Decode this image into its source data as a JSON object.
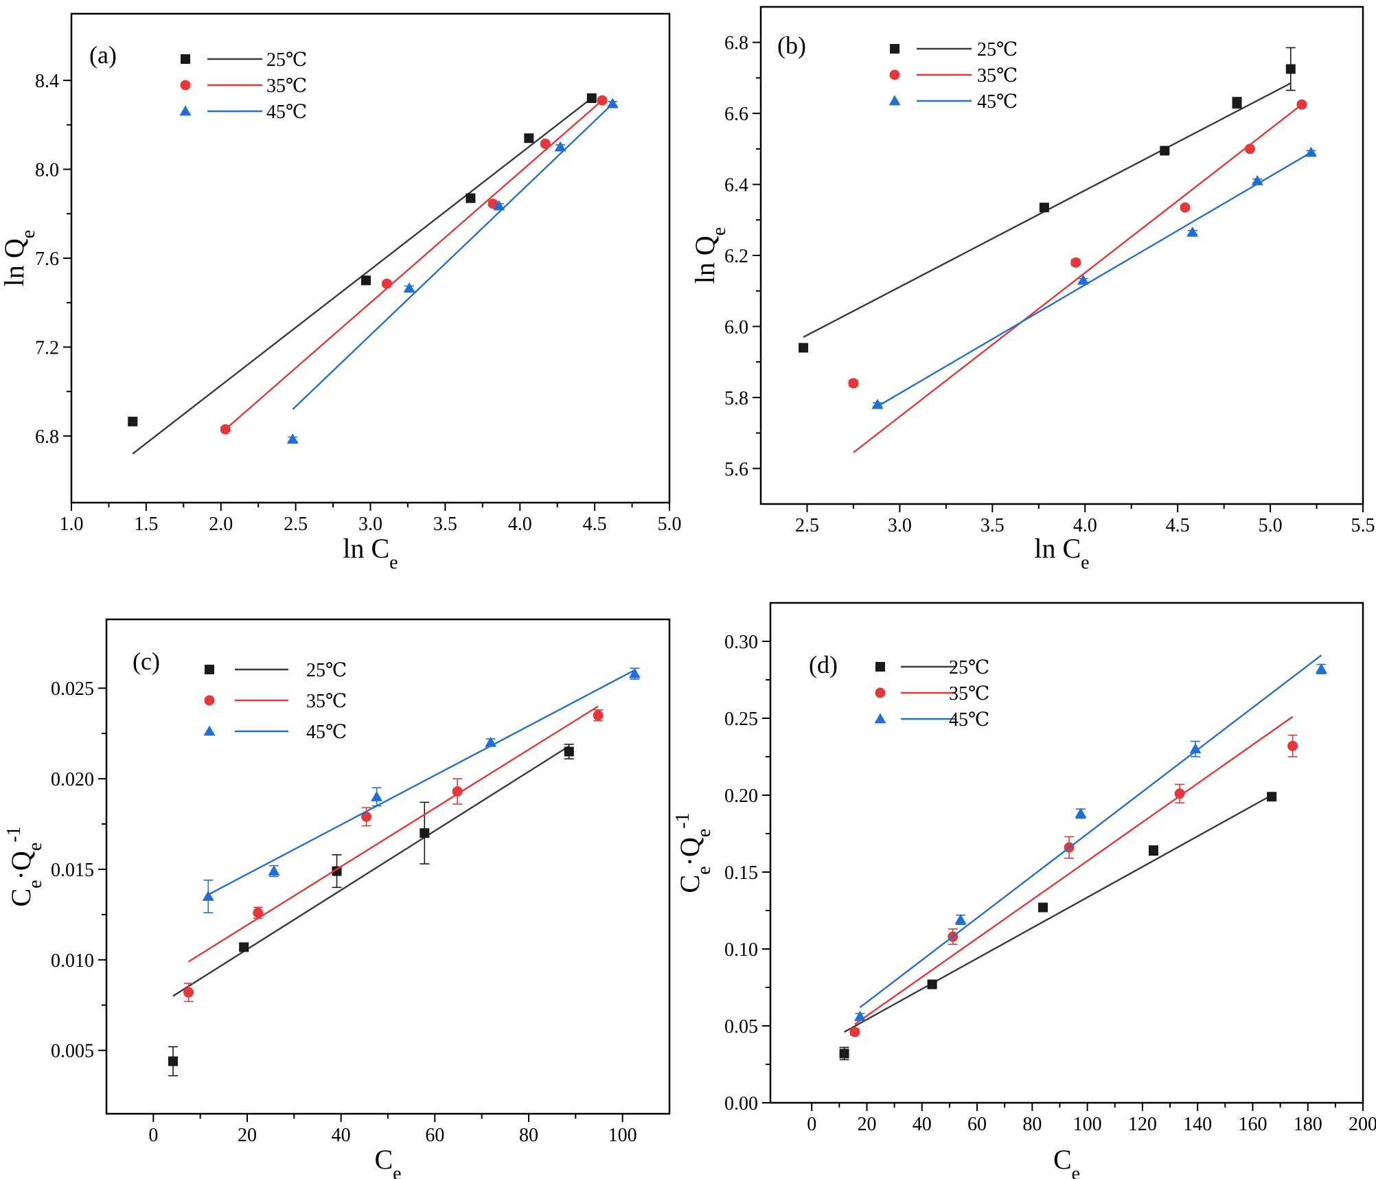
{
  "colors": {
    "25": "#1a1a1a",
    "35": "#e8373a",
    "45": "#1f6fd6",
    "line25": "#3a3a3a",
    "line35": "#e8373a",
    "line45": "#2470d0"
  },
  "chart_data": [
    {
      "type": "scatter",
      "panel_label": "(a)",
      "xlabel": "ln C",
      "xlabel_sub": "e",
      "ylabel": "ln Q",
      "ylabel_sub": "e",
      "ylabel_sup": "",
      "xlim": [
        1.0,
        5.0
      ],
      "ylim": [
        6.5,
        8.7
      ],
      "xticks": [
        1.0,
        1.5,
        2.0,
        2.5,
        3.0,
        3.5,
        4.0,
        4.5,
        5.0
      ],
      "xtick_labels": [
        "1.0",
        "1.5",
        "2.0",
        "2.5",
        "3.0",
        "3.5",
        "4.0",
        "4.5",
        "5.0"
      ],
      "yticks": [
        6.8,
        7.2,
        7.6,
        8.0,
        8.4
      ],
      "ytick_labels": [
        "6.8",
        "7.2",
        "7.6",
        "8.0",
        "8.4"
      ],
      "legend_position": "top-left",
      "series": [
        {
          "name": "25℃",
          "marker": "square",
          "color_key": "25",
          "x": [
            1.41,
            2.97,
            3.67,
            4.06,
            4.48
          ],
          "y": [
            6.865,
            7.5,
            7.87,
            8.14,
            8.32
          ],
          "err": [
            0.01,
            0.01,
            0.01,
            0.01,
            0.01
          ],
          "fit": {
            "x": [
              1.41,
              4.48
            ],
            "y": [
              6.72,
              8.32
            ]
          }
        },
        {
          "name": "35℃",
          "marker": "circle",
          "color_key": "35",
          "x": [
            2.03,
            3.11,
            3.82,
            4.17,
            4.55
          ],
          "y": [
            6.83,
            7.485,
            7.845,
            8.115,
            8.31
          ],
          "err": [
            0.01,
            0.01,
            0.01,
            0.01,
            0.01
          ],
          "fit": {
            "x": [
              2.03,
              4.55
            ],
            "y": [
              6.83,
              8.31
            ]
          }
        },
        {
          "name": "45℃",
          "marker": "triangle",
          "color_key": "45",
          "x": [
            2.48,
            3.26,
            3.86,
            4.27,
            4.62
          ],
          "y": [
            6.785,
            7.465,
            7.835,
            8.1,
            8.295
          ],
          "err": [
            0.01,
            0.01,
            0.01,
            0.01,
            0.01
          ],
          "fit": {
            "x": [
              2.48,
              4.62
            ],
            "y": [
              6.92,
              8.295
            ]
          }
        }
      ]
    },
    {
      "type": "scatter",
      "panel_label": "(b)",
      "xlabel": "ln C",
      "xlabel_sub": "e",
      "ylabel": "ln Q",
      "ylabel_sub": "e",
      "ylabel_sup": "",
      "xlim": [
        2.25,
        5.5
      ],
      "ylim": [
        5.5,
        6.9
      ],
      "xticks": [
        2.5,
        3.0,
        3.5,
        4.0,
        4.5,
        5.0,
        5.5
      ],
      "xtick_labels": [
        "2.5",
        "3.0",
        "3.5",
        "4.0",
        "4.5",
        "5.0",
        "5.5"
      ],
      "yticks": [
        5.6,
        5.8,
        6.0,
        6.2,
        6.4,
        6.6,
        6.8
      ],
      "ytick_labels": [
        "5.6",
        "5.8",
        "6.0",
        "6.2",
        "6.4",
        "6.6",
        "6.8"
      ],
      "legend_position": "top-left",
      "series": [
        {
          "name": "25℃",
          "marker": "square",
          "color_key": "25",
          "x": [
            2.48,
            3.78,
            4.43,
            4.82,
            5.11
          ],
          "y": [
            5.94,
            6.335,
            6.495,
            6.63,
            6.725
          ],
          "err": [
            0.005,
            0.005,
            0.005,
            0.015,
            0.06
          ],
          "fit": {
            "x": [
              2.48,
              5.11
            ],
            "y": [
              5.97,
              6.685
            ]
          }
        },
        {
          "name": "35℃",
          "marker": "circle",
          "color_key": "35",
          "x": [
            2.75,
            3.95,
            4.54,
            4.89,
            5.17
          ],
          "y": [
            5.84,
            6.18,
            6.335,
            6.5,
            6.625
          ],
          "err": [
            0.008,
            0.008,
            0.005,
            0.005,
            0.005
          ],
          "fit": {
            "x": [
              2.75,
              5.17
            ],
            "y": [
              5.645,
              6.625
            ]
          }
        },
        {
          "name": "45℃",
          "marker": "triangle",
          "color_key": "45",
          "x": [
            2.88,
            3.99,
            4.58,
            4.93,
            5.22
          ],
          "y": [
            5.78,
            6.13,
            6.265,
            6.41,
            6.49
          ],
          "err": [
            0.005,
            0.005,
            0.005,
            0.005,
            0.005
          ],
          "fit": {
            "x": [
              2.88,
              5.22
            ],
            "y": [
              5.775,
              6.49
            ]
          }
        }
      ]
    },
    {
      "type": "scatter",
      "panel_label": "(c)",
      "xlabel": "C",
      "xlabel_sub": "e",
      "ylabel": "C",
      "ylabel_sub": "e",
      "ylabel_mid": "·Q",
      "ylabel_sub2": "e",
      "ylabel_sup": "-1",
      "xlim": [
        -10,
        110
      ],
      "ylim": [
        0.0015,
        0.0288
      ],
      "xticks": [
        0,
        20,
        40,
        60,
        80,
        100
      ],
      "xtick_labels": [
        "0",
        "20",
        "40",
        "60",
        "80",
        "100"
      ],
      "yticks": [
        0.005,
        0.01,
        0.015,
        0.02,
        0.025
      ],
      "ytick_labels": [
        "0.005",
        "0.010",
        "0.015",
        "0.020",
        "0.025"
      ],
      "legend_position": "top-left",
      "series": [
        {
          "name": "25℃",
          "marker": "square",
          "color_key": "25",
          "x": [
            4.2,
            19.3,
            39.1,
            57.8,
            88.6
          ],
          "y": [
            0.0044,
            0.0107,
            0.0149,
            0.017,
            0.0215
          ],
          "err": [
            0.0008,
            0.0002,
            0.0009,
            0.0017,
            0.0004
          ],
          "fit": {
            "x": [
              4.2,
              88.6
            ],
            "y": [
              0.008,
              0.0218
            ]
          }
        },
        {
          "name": "35℃",
          "marker": "circle",
          "color_key": "35",
          "x": [
            7.5,
            22.3,
            45.4,
            64.8,
            94.8
          ],
          "y": [
            0.0082,
            0.0126,
            0.0179,
            0.0193,
            0.0235
          ],
          "err": [
            0.0005,
            0.0003,
            0.0005,
            0.0007,
            0.0003
          ],
          "fit": {
            "x": [
              7.5,
              94.8
            ],
            "y": [
              0.0099,
              0.024
            ]
          }
        },
        {
          "name": "45℃",
          "marker": "triangle",
          "color_key": "45",
          "x": [
            11.7,
            25.7,
            47.6,
            71.9,
            102.6
          ],
          "y": [
            0.0135,
            0.0149,
            0.019,
            0.022,
            0.0258
          ],
          "err": [
            0.0009,
            0.0003,
            0.0005,
            0.0002,
            0.0003
          ],
          "fit": {
            "x": [
              11.7,
              102.6
            ],
            "y": [
              0.0136,
              0.026
            ]
          }
        }
      ]
    },
    {
      "type": "scatter",
      "panel_label": "(d)",
      "xlabel": "C",
      "xlabel_sub": "e",
      "ylabel": "C",
      "ylabel_sub": "e",
      "ylabel_mid": "·Q",
      "ylabel_sub2": "e",
      "ylabel_sup": "-1",
      "xlim": [
        -15,
        200
      ],
      "ylim": [
        0.0,
        0.325
      ],
      "xticks": [
        0,
        20,
        40,
        60,
        80,
        100,
        120,
        140,
        160,
        180,
        200
      ],
      "xtick_labels": [
        "0",
        "20",
        "40",
        "60",
        "80",
        "100",
        "120",
        "140",
        "160",
        "180",
        "200"
      ],
      "yticks": [
        0.0,
        0.05,
        0.1,
        0.15,
        0.2,
        0.25,
        0.3
      ],
      "ytick_labels": [
        "0.00",
        "0.05",
        "0.10",
        "0.15",
        "0.20",
        "0.25",
        "0.30"
      ],
      "legend_position": "top-left",
      "series": [
        {
          "name": "25℃",
          "marker": "square",
          "color_key": "25",
          "x": [
            11.8,
            43.7,
            83.9,
            124.0,
            166.9
          ],
          "y": [
            0.032,
            0.077,
            0.127,
            0.164,
            0.199
          ],
          "err": [
            0.004,
            0.002,
            0.002,
            0.003,
            0.002
          ],
          "fit": {
            "x": [
              11.8,
              166.9
            ],
            "y": [
              0.046,
              0.2
            ]
          }
        },
        {
          "name": "35℃",
          "marker": "circle",
          "color_key": "35",
          "x": [
            15.6,
            51.2,
            93.4,
            133.5,
            174.5
          ],
          "y": [
            0.046,
            0.108,
            0.166,
            0.201,
            0.232
          ],
          "err": [
            0.002,
            0.005,
            0.007,
            0.006,
            0.007
          ],
          "fit": {
            "x": [
              15.6,
              174.5
            ],
            "y": [
              0.051,
              0.251
            ]
          }
        },
        {
          "name": "45℃",
          "marker": "triangle",
          "color_key": "45",
          "x": [
            17.5,
            54.0,
            97.6,
            139.2,
            184.9
          ],
          "y": [
            0.056,
            0.119,
            0.188,
            0.23,
            0.282
          ],
          "err": [
            0.002,
            0.003,
            0.003,
            0.005,
            0.003
          ],
          "fit": {
            "x": [
              17.5,
              184.9
            ],
            "y": [
              0.062,
              0.291
            ]
          }
        }
      ]
    }
  ]
}
